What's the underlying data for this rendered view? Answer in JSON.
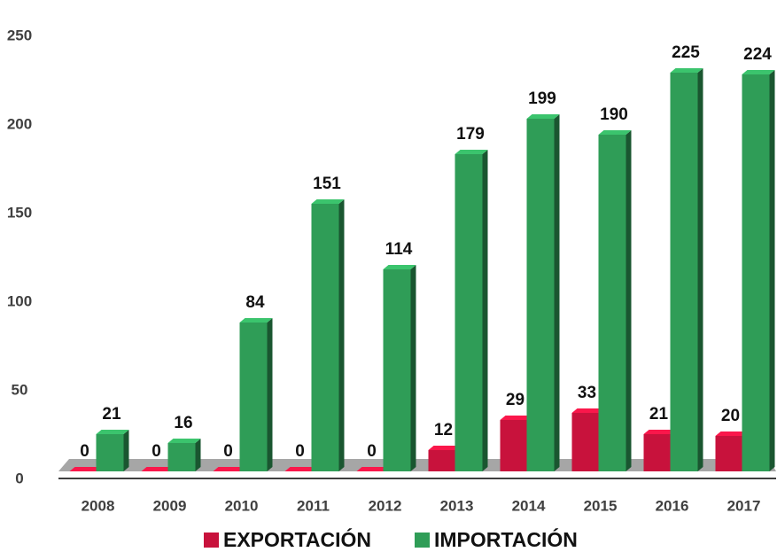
{
  "chart_data": {
    "type": "bar3d",
    "categories": [
      "2008",
      "2009",
      "2010",
      "2011",
      "2012",
      "2013",
      "2014",
      "2015",
      "2016",
      "2017"
    ],
    "series": [
      {
        "name": "EXPORTACIÓN",
        "color": "#c8123c",
        "values": [
          0,
          0,
          0,
          0,
          0,
          12,
          29,
          33,
          21,
          20
        ]
      },
      {
        "name": "IMPORTACIÓN",
        "color": "#2f9d57",
        "values": [
          21,
          16,
          84,
          151,
          114,
          179,
          199,
          190,
          225,
          224
        ]
      }
    ],
    "ylim": [
      0,
      250
    ],
    "yticks": [
      0,
      50,
      100,
      150,
      200,
      250
    ],
    "grid": false,
    "legend": "bottom"
  }
}
